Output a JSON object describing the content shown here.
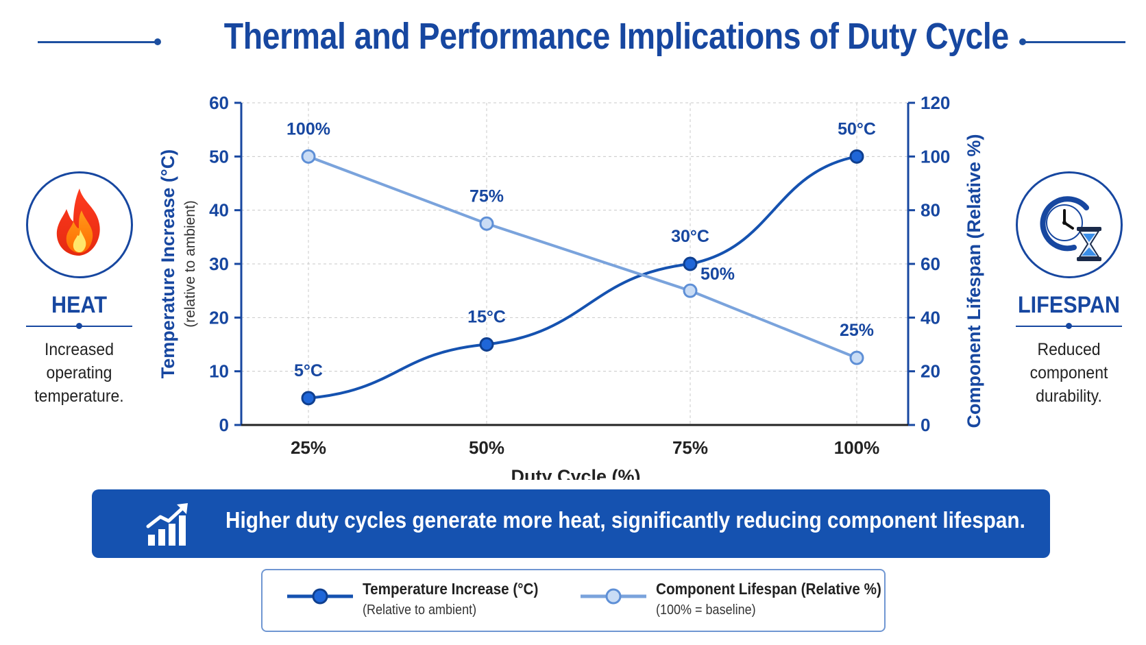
{
  "title": "Thermal and Performance Implications of Duty Cycle",
  "left_panel": {
    "icon": "flame-icon",
    "label": "HEAT",
    "description": [
      "Increased",
      "operating",
      "temperature."
    ]
  },
  "right_panel": {
    "icon": "clock-hourglass-icon",
    "label": "LIFESPAN",
    "description": [
      "Reduced",
      "component",
      "durability."
    ]
  },
  "banner": {
    "icon": "growth-chart-icon",
    "text": "Higher duty cycles generate more heat, significantly reducing component lifespan."
  },
  "legend": {
    "items": [
      {
        "title": "Temperature Increase (°C)",
        "subtitle": "(Relative to ambient)"
      },
      {
        "title": "Component Lifespan (Relative %)",
        "subtitle": "(100% = baseline)"
      }
    ]
  },
  "colors": {
    "primary": "#1747a0",
    "temperature_series": "#1552b0",
    "lifespan_series": "#7aa3dc",
    "banner_bg": "#1552b0"
  },
  "chart_data": {
    "type": "line",
    "categories": [
      "25%",
      "50%",
      "75%",
      "100%"
    ],
    "xlabel": "Duty Cycle (%)",
    "y_left": {
      "label": "Temperature Increase (°C)",
      "sublabel": "(relative to ambient)",
      "range": [
        0,
        60
      ],
      "ticks": [
        "0",
        "10",
        "20",
        "30",
        "40",
        "50",
        "60"
      ]
    },
    "y_right": {
      "label": "Component Lifespan (Relative %)",
      "range": [
        0,
        120
      ],
      "ticks": [
        "0",
        "20",
        "40",
        "60",
        "80",
        "100",
        "120"
      ]
    },
    "grid": true,
    "series": [
      {
        "name": "Temperature Increase (°C)",
        "axis": "left",
        "values": [
          5,
          15,
          30,
          50
        ],
        "labels": [
          "5°C",
          "15°C",
          "30°C",
          "50°C"
        ]
      },
      {
        "name": "Component Lifespan (Relative %)",
        "axis": "right",
        "values": [
          100,
          75,
          50,
          25
        ],
        "labels": [
          "100%",
          "75%",
          "50%",
          "25%"
        ]
      }
    ]
  }
}
